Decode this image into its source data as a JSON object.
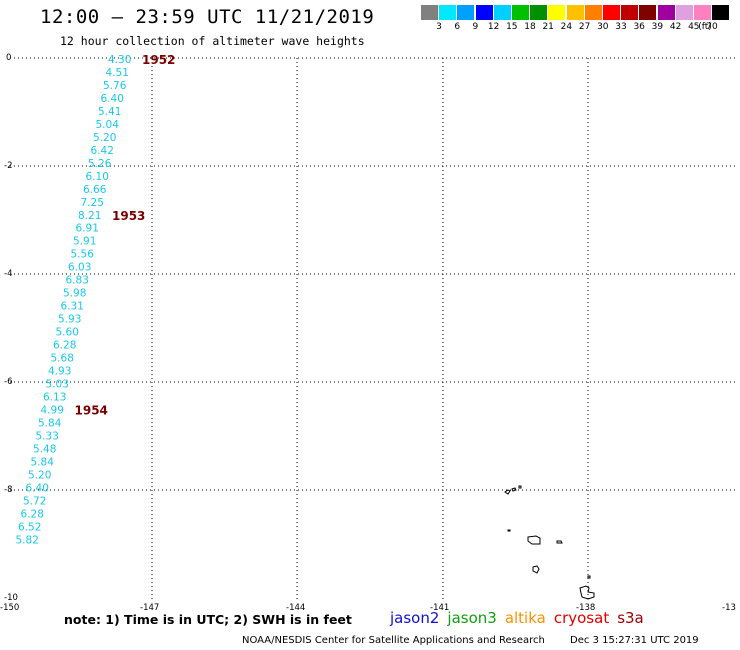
{
  "title": "12:00 – 23:59 UTC 11/21/2019",
  "subtitle": "12 hour collection of altimeter wave heights",
  "colorbar": {
    "colors": [
      "#808080",
      "#00e8ff",
      "#00a0ff",
      "#0000ff",
      "#00d0ff",
      "#00c000",
      "#009000",
      "#ffff00",
      "#ffc000",
      "#ff8000",
      "#ff0000",
      "#c00000",
      "#800000",
      "#a000a0",
      "#e0a0e0",
      "#ff80c0",
      "#000000"
    ],
    "labels": [
      "3",
      "6",
      "9",
      "12",
      "15",
      "18",
      "21",
      "24",
      "27",
      "30",
      "33",
      "36",
      "39",
      "42",
      "45",
      "70"
    ],
    "unit": "(ft)"
  },
  "axes": {
    "lat_labels": [
      "0",
      "-2",
      "-4",
      "-6",
      "-8",
      "-10"
    ],
    "lon_labels": [
      "-150",
      "-147",
      "-144",
      "-141",
      "-138",
      "-13"
    ]
  },
  "wave_heights": [
    "4.30",
    "4.51",
    "5.76",
    "6.40",
    "5.41",
    "5.04",
    "5.20",
    "6.42",
    "5.26",
    "6.10",
    "6.66",
    "7.25",
    "8.21",
    "6.91",
    "5.91",
    "5.56",
    "6.03",
    "6.83",
    "5.98",
    "6.31",
    "5.93",
    "5.60",
    "6.28",
    "5.68",
    "4.93",
    "5.03",
    "6.13",
    "4.99",
    "5.84",
    "5.33",
    "5.48",
    "5.84",
    "5.20",
    "6.40",
    "5.72",
    "6.28",
    "6.52",
    "5.82"
  ],
  "time_labels": [
    {
      "text": "1952",
      "index": 0
    },
    {
      "text": "1953",
      "index": 12
    },
    {
      "text": "1954",
      "index": 27
    }
  ],
  "note": "note:  1) Time is in UTC;  2) SWH is in feet",
  "legend": [
    {
      "name": "jason2",
      "color": "#1010d0"
    },
    {
      "name": "jason3",
      "color": "#10a010"
    },
    {
      "name": "altika",
      "color": "#ff9000"
    },
    {
      "name": "cryosat",
      "color": "#e00000"
    },
    {
      "name": "s3a",
      "color": "#a00000"
    }
  ],
  "footer": {
    "credit": "NOAA/NESDIS Center for Satellite Applications and Research",
    "timestamp": "Dec  3 15:27:31 UTC 2019"
  }
}
